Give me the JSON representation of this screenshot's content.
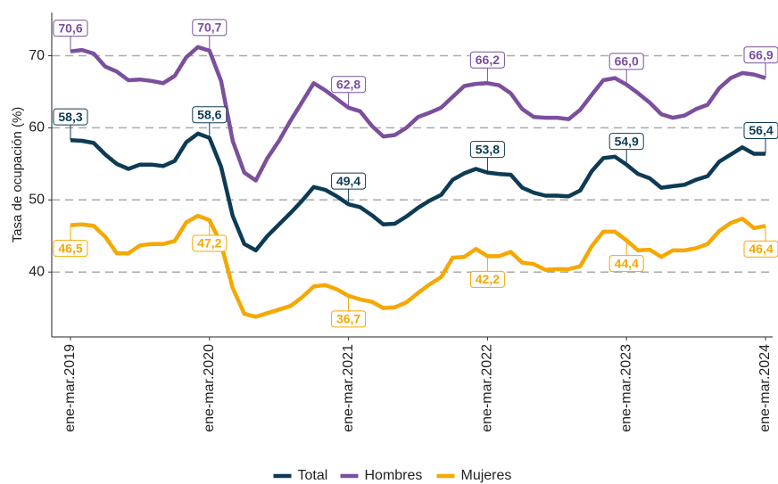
{
  "chart_data": {
    "type": "line",
    "y_label": "Tasa de ocupación (%)",
    "categories": [
      "ene-mar.2019",
      null,
      null,
      null,
      null,
      null,
      null,
      null,
      null,
      null,
      null,
      null,
      "ene-mar.2020",
      null,
      null,
      null,
      null,
      null,
      null,
      null,
      null,
      null,
      null,
      null,
      "ene-mar.2021",
      null,
      null,
      null,
      null,
      null,
      null,
      null,
      null,
      null,
      null,
      null,
      "ene-mar.2022",
      null,
      null,
      null,
      null,
      null,
      null,
      null,
      null,
      null,
      null,
      null,
      "ene-mar.2023",
      null,
      null,
      null,
      null,
      null,
      null,
      null,
      null,
      null,
      null,
      null,
      "ene-mar.2024"
    ],
    "ylim": [
      31,
      76
    ],
    "yticks": [
      40,
      50,
      60,
      70
    ],
    "grid": true,
    "legend": "bottom",
    "series": [
      {
        "name": "Total",
        "color": "#0d3b55",
        "label_side": "above",
        "values": [
          58.3,
          58.2,
          57.9,
          56.3,
          55.0,
          54.3,
          54.9,
          54.9,
          54.7,
          55.4,
          58.0,
          59.2,
          58.6,
          54.6,
          47.8,
          43.9,
          43.0,
          45.0,
          46.6,
          48.2,
          49.9,
          51.8,
          51.4,
          50.5,
          49.4,
          49.0,
          47.9,
          46.6,
          46.7,
          47.7,
          48.9,
          49.9,
          50.7,
          52.8,
          53.7,
          54.3,
          53.8,
          53.6,
          53.5,
          51.7,
          51.0,
          50.6,
          50.6,
          50.5,
          51.3,
          54.0,
          55.8,
          56.0,
          54.9,
          53.6,
          53.0,
          51.7,
          51.9,
          52.1,
          52.8,
          53.3,
          55.3,
          56.3,
          57.3,
          56.4,
          56.4
        ],
        "value_labels": [
          "58,3",
          null,
          null,
          null,
          null,
          null,
          null,
          null,
          null,
          null,
          null,
          null,
          "58,6",
          null,
          null,
          null,
          null,
          null,
          null,
          null,
          null,
          null,
          null,
          null,
          "49,4",
          null,
          null,
          null,
          null,
          null,
          null,
          null,
          null,
          null,
          null,
          null,
          "53,8",
          null,
          null,
          null,
          null,
          null,
          null,
          null,
          null,
          null,
          null,
          null,
          "54,9",
          null,
          null,
          null,
          null,
          null,
          null,
          null,
          null,
          null,
          null,
          null,
          "56,4"
        ]
      },
      {
        "name": "Hombres",
        "color": "#7b4f9d",
        "label_side": "above",
        "values": [
          70.6,
          70.8,
          70.3,
          68.5,
          67.8,
          66.6,
          66.7,
          66.5,
          66.2,
          67.2,
          69.8,
          71.2,
          70.7,
          66.5,
          58.2,
          53.8,
          52.7,
          55.8,
          58.2,
          61.0,
          63.6,
          66.2,
          65.2,
          64.0,
          62.8,
          62.3,
          60.3,
          58.8,
          59.0,
          60.0,
          61.5,
          62.1,
          62.8,
          64.3,
          65.8,
          66.1,
          66.2,
          65.9,
          64.8,
          62.6,
          61.5,
          61.4,
          61.4,
          61.2,
          62.5,
          64.6,
          66.6,
          66.9,
          66.0,
          64.8,
          63.5,
          61.9,
          61.4,
          61.7,
          62.6,
          63.2,
          65.5,
          66.9,
          67.6,
          67.4,
          66.9
        ],
        "value_labels": [
          "70,6",
          null,
          null,
          null,
          null,
          null,
          null,
          null,
          null,
          null,
          null,
          null,
          "70,7",
          null,
          null,
          null,
          null,
          null,
          null,
          null,
          null,
          null,
          null,
          null,
          "62,8",
          null,
          null,
          null,
          null,
          null,
          null,
          null,
          null,
          null,
          null,
          null,
          "66,2",
          null,
          null,
          null,
          null,
          null,
          null,
          null,
          null,
          null,
          null,
          null,
          "66,0",
          null,
          null,
          null,
          null,
          null,
          null,
          null,
          null,
          null,
          null,
          null,
          "66,9"
        ]
      },
      {
        "name": "Mujeres",
        "color": "#f5a800",
        "label_side": "below",
        "values": [
          46.5,
          46.6,
          46.4,
          44.9,
          42.6,
          42.6,
          43.7,
          43.9,
          43.9,
          44.3,
          46.9,
          47.8,
          47.2,
          43.9,
          37.8,
          34.2,
          33.8,
          34.3,
          34.8,
          35.3,
          36.5,
          38.0,
          38.2,
          37.6,
          36.7,
          36.2,
          35.9,
          35.0,
          35.1,
          35.8,
          37.1,
          38.3,
          39.3,
          42.0,
          42.1,
          43.2,
          42.2,
          42.2,
          42.8,
          41.3,
          41.1,
          40.3,
          40.4,
          40.4,
          40.8,
          43.6,
          45.6,
          45.6,
          44.4,
          43.0,
          43.1,
          42.1,
          43.0,
          43.0,
          43.3,
          43.9,
          45.7,
          46.8,
          47.4,
          46.1,
          46.4
        ],
        "value_labels": [
          "46,5",
          null,
          null,
          null,
          null,
          null,
          null,
          null,
          null,
          null,
          null,
          null,
          "47,2",
          null,
          null,
          null,
          null,
          null,
          null,
          null,
          null,
          null,
          null,
          null,
          "36,7",
          null,
          null,
          null,
          null,
          null,
          null,
          null,
          null,
          null,
          null,
          null,
          "42,2",
          null,
          null,
          null,
          null,
          null,
          null,
          null,
          null,
          null,
          null,
          null,
          "44,4",
          null,
          null,
          null,
          null,
          null,
          null,
          null,
          null,
          null,
          null,
          null,
          "46,4"
        ]
      }
    ]
  }
}
